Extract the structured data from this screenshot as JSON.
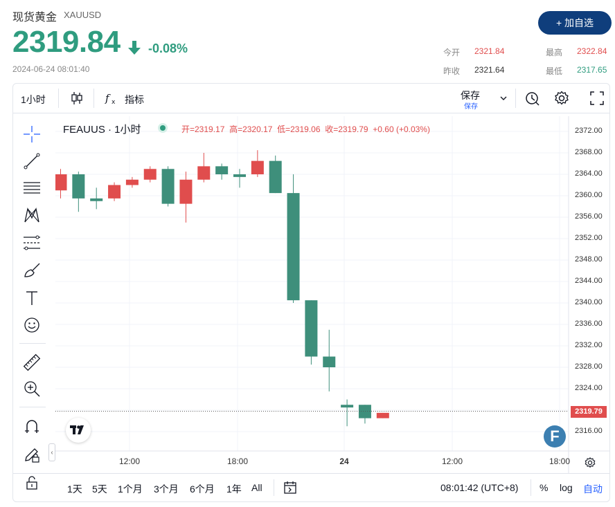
{
  "header": {
    "title": "现货黄金",
    "symbol": "XAUUSD",
    "price": "2319.84",
    "change_pct": "-0.08%",
    "timestamp": "2024-06-24 08:01:40",
    "follow_label": "+ 加自选"
  },
  "stats": {
    "open_label": "今开",
    "open": "2321.84",
    "high_label": "最高",
    "high": "2322.84",
    "prev_close_label": "昨收",
    "prev_close": "2321.64",
    "low_label": "最低",
    "low": "2317.65"
  },
  "toolbar": {
    "interval": "1小时",
    "indicators": "指标",
    "save": "保存",
    "save_sub": "保存"
  },
  "legend": {
    "symbol": "FEAUUS · 1小时",
    "open": "开=2319.17",
    "high": "高=2320.17",
    "low": "低=2319.06",
    "close": "收=2319.79",
    "change": "+0.60 (+0.03%)"
  },
  "chart_data": {
    "type": "candlestick",
    "y_ticks": [
      "2372.00",
      "2368.00",
      "2364.00",
      "2360.00",
      "2356.00",
      "2352.00",
      "2348.00",
      "2344.00",
      "2340.00",
      "2336.00",
      "2332.00",
      "2328.00",
      "2324.00",
      "2320.00",
      "2316.00"
    ],
    "x_ticks": [
      "12:00",
      "18:00",
      "24",
      "12:00",
      "18:00"
    ],
    "last_price_label": "2319.79",
    "last_price": 2319.79,
    "candles": [
      {
        "o": 2361.0,
        "h": 2365.0,
        "l": 2359.5,
        "c": 2364.0
      },
      {
        "o": 2364.0,
        "h": 2364.5,
        "l": 2357.0,
        "c": 2359.5
      },
      {
        "o": 2359.5,
        "h": 2361.5,
        "l": 2357.5,
        "c": 2359.0
      },
      {
        "o": 2359.5,
        "h": 2362.5,
        "l": 2359.0,
        "c": 2362.0
      },
      {
        "o": 2362.0,
        "h": 2363.5,
        "l": 2361.5,
        "c": 2363.0
      },
      {
        "o": 2363.0,
        "h": 2365.5,
        "l": 2362.5,
        "c": 2365.0
      },
      {
        "o": 2365.0,
        "h": 2365.5,
        "l": 2358.0,
        "c": 2358.5
      },
      {
        "o": 2358.5,
        "h": 2364.5,
        "l": 2355.0,
        "c": 2363.0
      },
      {
        "o": 2363.0,
        "h": 2368.0,
        "l": 2362.5,
        "c": 2365.5
      },
      {
        "o": 2365.5,
        "h": 2366.0,
        "l": 2363.0,
        "c": 2364.0
      },
      {
        "o": 2364.0,
        "h": 2365.0,
        "l": 2361.5,
        "c": 2363.5
      },
      {
        "o": 2364.0,
        "h": 2368.5,
        "l": 2363.5,
        "c": 2366.5
      },
      {
        "o": 2366.5,
        "h": 2367.5,
        "l": 2360.5,
        "c": 2360.5
      },
      {
        "o": 2360.5,
        "h": 2364.0,
        "l": 2340.0,
        "c": 2340.5
      },
      {
        "o": 2340.5,
        "h": 2340.5,
        "l": 2328.5,
        "c": 2330.0
      },
      {
        "o": 2330.0,
        "h": 2335.0,
        "l": 2323.5,
        "c": 2328.0
      },
      {
        "o": 2321.0,
        "h": 2322.0,
        "l": 2317.0,
        "c": 2320.5
      },
      {
        "o": 2321.0,
        "h": 2321.0,
        "l": 2317.5,
        "c": 2318.5
      },
      {
        "o": 2318.5,
        "h": 2319.5,
        "l": 2318.5,
        "c": 2319.5
      }
    ]
  },
  "ranges": [
    "1天",
    "5天",
    "1个月",
    "3个月",
    "6个月",
    "1年",
    "All"
  ],
  "footer": {
    "time": "08:01:42 (UTC+8)",
    "percent": "%",
    "log": "log",
    "auto": "自动"
  },
  "colors": {
    "up": "#e04d4d",
    "down": "#3e8f7b",
    "price_green": "#2f9c7f",
    "button": "#0f3e7c",
    "link": "#2962ff"
  }
}
